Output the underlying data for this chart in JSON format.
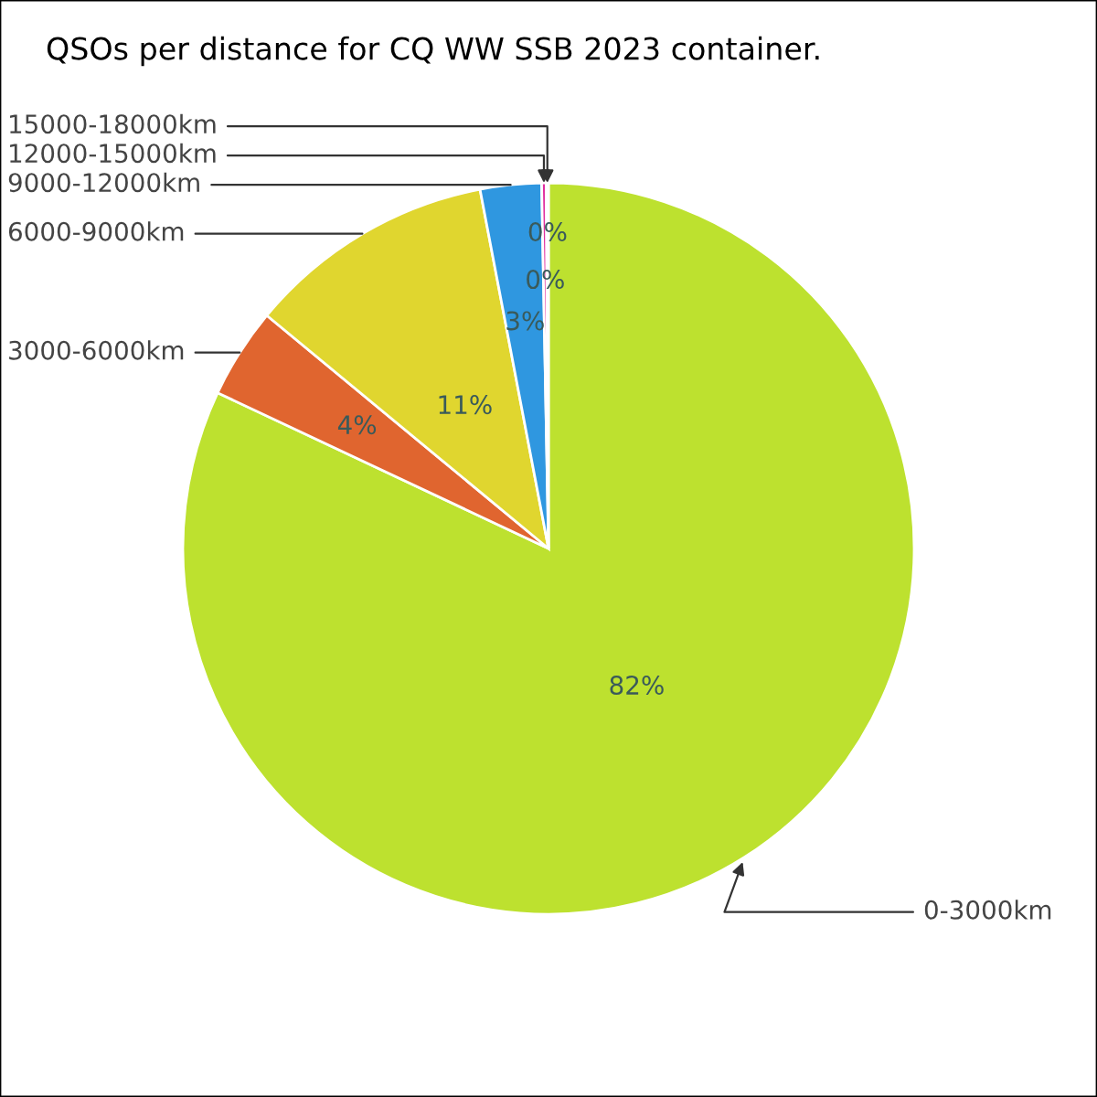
{
  "chart_data": {
    "type": "pie",
    "title": "QSOs per distance for CQ WW SSB 2023 container.",
    "categories": [
      "0-3000km",
      "3000-6000km",
      "6000-9000km",
      "9000-12000km",
      "12000-15000km",
      "15000-18000km"
    ],
    "values": [
      82,
      4,
      11,
      2.7,
      0.2,
      0.1
    ],
    "value_labels": [
      "82%",
      "4%",
      "11%",
      "3%",
      "0%",
      "0%"
    ],
    "colors": [
      "#bde12f",
      "#e0652f",
      "#e0d62f",
      "#2f97e0",
      "#e02fa0",
      "#a060e0"
    ]
  }
}
